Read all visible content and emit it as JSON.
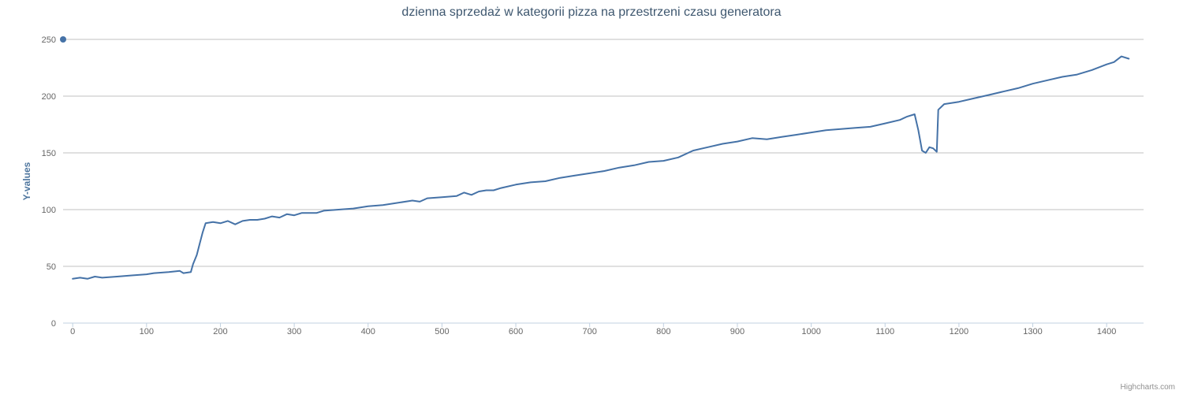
{
  "chart_data": {
    "type": "line",
    "title": "dzienna sprzedaż w kategorii pizza na przestrzeni czasu generatora",
    "xlabel": "",
    "ylabel": "Y-values",
    "xlim": [
      -13,
      1450
    ],
    "ylim": [
      0,
      250
    ],
    "x_ticks": [
      0,
      100,
      200,
      300,
      400,
      500,
      600,
      700,
      800,
      900,
      1000,
      1100,
      1200,
      1300,
      1400
    ],
    "y_ticks": [
      0,
      50,
      100,
      150,
      200,
      250
    ],
    "grid": true,
    "legend": "none",
    "series_color": "#4572a7",
    "marker_point": {
      "x": -13,
      "y": 250
    },
    "series": [
      {
        "values": [
          [
            0,
            39
          ],
          [
            10,
            40
          ],
          [
            20,
            39
          ],
          [
            30,
            41
          ],
          [
            40,
            40
          ],
          [
            60,
            41
          ],
          [
            80,
            42
          ],
          [
            100,
            43
          ],
          [
            110,
            44
          ],
          [
            130,
            45
          ],
          [
            145,
            46
          ],
          [
            150,
            44
          ],
          [
            160,
            45
          ],
          [
            163,
            52
          ],
          [
            168,
            60
          ],
          [
            172,
            70
          ],
          [
            176,
            80
          ],
          [
            180,
            88
          ],
          [
            190,
            89
          ],
          [
            200,
            88
          ],
          [
            210,
            90
          ],
          [
            220,
            87
          ],
          [
            230,
            90
          ],
          [
            240,
            91
          ],
          [
            250,
            91
          ],
          [
            260,
            92
          ],
          [
            270,
            94
          ],
          [
            280,
            93
          ],
          [
            290,
            96
          ],
          [
            300,
            95
          ],
          [
            310,
            97
          ],
          [
            320,
            97
          ],
          [
            330,
            97
          ],
          [
            340,
            99
          ],
          [
            360,
            100
          ],
          [
            380,
            101
          ],
          [
            400,
            103
          ],
          [
            420,
            104
          ],
          [
            440,
            106
          ],
          [
            460,
            108
          ],
          [
            470,
            107
          ],
          [
            480,
            110
          ],
          [
            500,
            111
          ],
          [
            520,
            112
          ],
          [
            530,
            115
          ],
          [
            540,
            113
          ],
          [
            550,
            116
          ],
          [
            560,
            117
          ],
          [
            570,
            117
          ],
          [
            580,
            119
          ],
          [
            600,
            122
          ],
          [
            620,
            124
          ],
          [
            640,
            125
          ],
          [
            660,
            128
          ],
          [
            680,
            130
          ],
          [
            700,
            132
          ],
          [
            720,
            134
          ],
          [
            740,
            137
          ],
          [
            760,
            139
          ],
          [
            780,
            142
          ],
          [
            800,
            143
          ],
          [
            820,
            146
          ],
          [
            840,
            152
          ],
          [
            860,
            155
          ],
          [
            880,
            158
          ],
          [
            900,
            160
          ],
          [
            920,
            163
          ],
          [
            940,
            162
          ],
          [
            960,
            164
          ],
          [
            980,
            166
          ],
          [
            1000,
            168
          ],
          [
            1020,
            170
          ],
          [
            1040,
            171
          ],
          [
            1060,
            172
          ],
          [
            1080,
            173
          ],
          [
            1100,
            176
          ],
          [
            1120,
            179
          ],
          [
            1130,
            182
          ],
          [
            1140,
            184
          ],
          [
            1145,
            170
          ],
          [
            1150,
            152
          ],
          [
            1155,
            150
          ],
          [
            1160,
            155
          ],
          [
            1165,
            154
          ],
          [
            1170,
            151
          ],
          [
            1172,
            188
          ],
          [
            1180,
            193
          ],
          [
            1200,
            195
          ],
          [
            1220,
            198
          ],
          [
            1240,
            201
          ],
          [
            1260,
            204
          ],
          [
            1280,
            207
          ],
          [
            1300,
            211
          ],
          [
            1320,
            214
          ],
          [
            1340,
            217
          ],
          [
            1360,
            219
          ],
          [
            1380,
            223
          ],
          [
            1400,
            228
          ],
          [
            1410,
            230
          ],
          [
            1420,
            235
          ],
          [
            1430,
            233
          ]
        ]
      }
    ]
  },
  "credits": "Highcharts.com"
}
